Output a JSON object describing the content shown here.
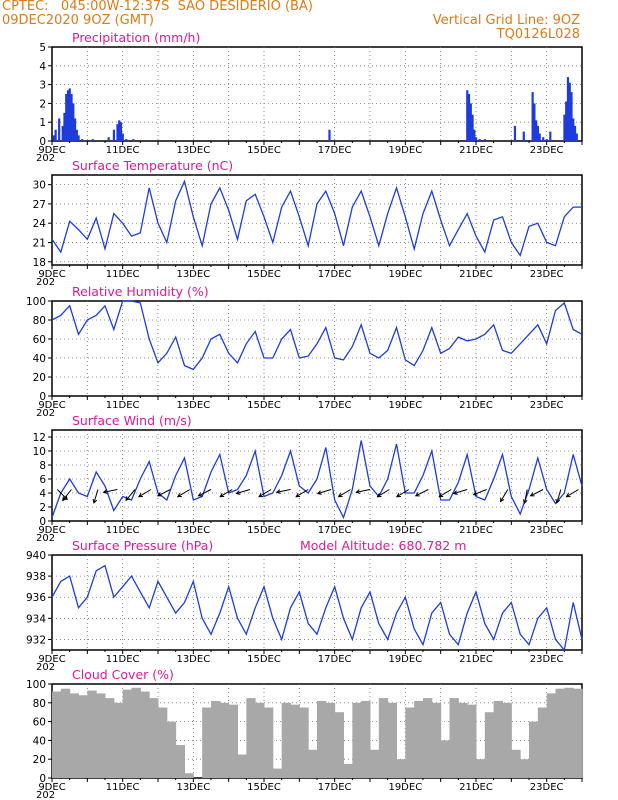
{
  "header": {
    "station": "CPTEC:   045:00W-12:37S  SAO DESIDERIO (BA)",
    "init_time": "09DEC2020 9OZ (GMT)",
    "grid_note": "Vertical Grid Line: 9OZ",
    "run_code": "TQ0126L028"
  },
  "colors": {
    "header": "#e07a14",
    "title": "#e0189a",
    "series": "#1e3cdc",
    "cloud": "#a8a8a8",
    "wind_arrow": "#000000"
  },
  "x_axis": {
    "start_day": 9,
    "end_day": 24,
    "labels": [
      {
        "day": 9,
        "text": "9DEC"
      },
      {
        "day": 11,
        "text": "11DEC"
      },
      {
        "day": 13,
        "text": "13DEC"
      },
      {
        "day": 15,
        "text": "15DEC"
      },
      {
        "day": 17,
        "text": "17DEC"
      },
      {
        "day": 19,
        "text": "19DEC"
      },
      {
        "day": 21,
        "text": "21DEC"
      },
      {
        "day": 23,
        "text": "23DEC"
      }
    ],
    "sub_label": "202"
  },
  "chart_data": [
    {
      "type": "bar",
      "title": "Precipitation (mm/h)",
      "ylim": [
        0,
        5
      ],
      "yticks": [
        0,
        1,
        2,
        3,
        4,
        5
      ],
      "x": [
        9.05,
        9.1,
        9.2,
        9.3,
        9.35,
        9.4,
        9.45,
        9.5,
        9.55,
        9.6,
        9.65,
        9.7,
        9.75,
        9.85,
        10.15,
        10.6,
        10.75,
        10.85,
        10.9,
        10.95,
        11.0,
        11.1,
        11.3,
        16.85,
        20.75,
        20.8,
        20.85,
        20.9,
        20.95,
        21.0,
        21.1,
        21.25,
        22.1,
        22.35,
        22.6,
        22.65,
        22.7,
        22.75,
        22.8,
        22.9,
        23.0,
        23.1,
        23.5,
        23.55,
        23.6,
        23.65,
        23.7,
        23.75,
        23.8,
        23.85
      ],
      "values": [
        0.3,
        0.6,
        1.2,
        0.8,
        1.5,
        2.5,
        2.7,
        2.8,
        2.5,
        2.0,
        1.2,
        0.6,
        0.3,
        0.1,
        0.1,
        0.2,
        0.6,
        0.9,
        1.1,
        1.0,
        0.4,
        0.1,
        0.1,
        0.6,
        2.7,
        2.5,
        2.0,
        1.4,
        0.6,
        0.2,
        0.1,
        0.1,
        0.8,
        0.5,
        2.6,
        2.0,
        1.1,
        0.8,
        0.4,
        0.2,
        0.1,
        0.5,
        1.4,
        2.1,
        3.4,
        3.1,
        2.6,
        1.2,
        0.8,
        0.4
      ]
    },
    {
      "type": "line",
      "title": "Surface Temperature (nC)",
      "ylim": [
        17.5,
        31.5
      ],
      "yticks": [
        18,
        21,
        24,
        27,
        30
      ],
      "series": [
        {
          "x": [
            9.0,
            9.25,
            9.5,
            9.75,
            10.0,
            10.25,
            10.5,
            10.75,
            11.0,
            11.25,
            11.5,
            11.75,
            12.0,
            12.25,
            12.5,
            12.75,
            13.0,
            13.25,
            13.5,
            13.75,
            14.0,
            14.25,
            14.5,
            14.75,
            15.0,
            15.25,
            15.5,
            15.75,
            16.0,
            16.25,
            16.5,
            16.75,
            17.0,
            17.25,
            17.5,
            17.75,
            18.0,
            18.25,
            18.5,
            18.75,
            19.0,
            19.25,
            19.5,
            19.75,
            20.0,
            20.25,
            20.5,
            20.75,
            21.0,
            21.25,
            21.5,
            21.75,
            22.0,
            22.25,
            22.5,
            22.75,
            23.0,
            23.25,
            23.5,
            23.75,
            24.0
          ],
          "values": [
            21.5,
            19.5,
            24.3,
            23.0,
            21.5,
            24.8,
            20.0,
            25.5,
            24.0,
            22.0,
            22.5,
            29.5,
            24.0,
            21.0,
            27.5,
            30.5,
            25.0,
            20.5,
            27.0,
            29.5,
            26.0,
            21.5,
            27.5,
            28.5,
            25.0,
            21.0,
            26.5,
            29.0,
            25.0,
            20.5,
            27.0,
            29.0,
            25.5,
            20.5,
            26.5,
            29.0,
            25.0,
            20.5,
            25.5,
            29.5,
            25.0,
            20.0,
            25.5,
            29.0,
            24.5,
            20.5,
            23.0,
            25.5,
            22.0,
            19.5,
            24.5,
            25.0,
            21.0,
            19.0,
            23.5,
            24.0,
            21.0,
            20.5,
            25.0,
            26.5,
            26.5
          ]
        }
      ]
    },
    {
      "type": "line",
      "title": "Relative Humidity (%)",
      "ylim": [
        0,
        100
      ],
      "yticks": [
        0,
        20,
        40,
        60,
        80,
        100
      ],
      "series": [
        {
          "x": [
            9.0,
            9.25,
            9.5,
            9.75,
            10.0,
            10.25,
            10.5,
            10.75,
            11.0,
            11.25,
            11.5,
            11.75,
            12.0,
            12.25,
            12.5,
            12.75,
            13.0,
            13.25,
            13.5,
            13.75,
            14.0,
            14.25,
            14.5,
            14.75,
            15.0,
            15.25,
            15.5,
            15.75,
            16.0,
            16.25,
            16.5,
            16.75,
            17.0,
            17.25,
            17.5,
            17.75,
            18.0,
            18.25,
            18.5,
            18.75,
            19.0,
            19.25,
            19.5,
            19.75,
            20.0,
            20.25,
            20.5,
            20.75,
            21.0,
            21.25,
            21.5,
            21.75,
            22.0,
            22.25,
            22.5,
            22.75,
            23.0,
            23.25,
            23.5,
            23.75,
            24.0
          ],
          "values": [
            80,
            85,
            95,
            65,
            80,
            85,
            95,
            70,
            100,
            100,
            98,
            60,
            35,
            45,
            62,
            32,
            28,
            40,
            60,
            65,
            45,
            35,
            55,
            68,
            40,
            40,
            60,
            70,
            40,
            42,
            55,
            72,
            40,
            38,
            52,
            75,
            45,
            40,
            48,
            72,
            38,
            32,
            48,
            72,
            45,
            50,
            62,
            58,
            60,
            65,
            75,
            48,
            45,
            55,
            65,
            75,
            55,
            90,
            98,
            70,
            65
          ]
        }
      ]
    },
    {
      "type": "line",
      "title": "Surface Wind (m/s)",
      "ylim": [
        0,
        13
      ],
      "yticks": [
        0,
        2,
        4,
        6,
        8,
        10,
        12
      ],
      "series": [
        {
          "x": [
            9.0,
            9.25,
            9.5,
            9.75,
            10.0,
            10.25,
            10.5,
            10.75,
            11.0,
            11.25,
            11.5,
            11.75,
            12.0,
            12.25,
            12.5,
            12.75,
            13.0,
            13.25,
            13.5,
            13.75,
            14.0,
            14.25,
            14.5,
            14.75,
            15.0,
            15.25,
            15.5,
            15.75,
            16.0,
            16.25,
            16.5,
            16.75,
            17.0,
            17.25,
            17.5,
            17.75,
            18.0,
            18.25,
            18.5,
            18.75,
            19.0,
            19.25,
            19.5,
            19.75,
            20.0,
            20.25,
            20.5,
            20.75,
            21.0,
            21.25,
            21.5,
            21.75,
            22.0,
            22.25,
            22.5,
            22.75,
            23.0,
            23.25,
            23.5,
            23.75,
            24.0
          ],
          "values": [
            0.5,
            4.0,
            6.0,
            4.0,
            3.5,
            7.0,
            5.0,
            1.5,
            3.5,
            3.0,
            6.0,
            8.5,
            4.0,
            3.0,
            6.5,
            9.0,
            3.0,
            3.5,
            7.0,
            9.5,
            4.0,
            4.5,
            6.5,
            10.0,
            3.5,
            4.0,
            6.5,
            10.0,
            5.0,
            4.0,
            6.0,
            10.5,
            3.0,
            0.5,
            4.5,
            11.5,
            5.0,
            3.5,
            6.0,
            11.0,
            4.0,
            4.0,
            6.5,
            10.0,
            3.0,
            3.0,
            5.5,
            9.5,
            3.5,
            3.0,
            6.0,
            9.5,
            3.5,
            1.0,
            4.5,
            9.0,
            4.5,
            2.5,
            4.0,
            9.5,
            5.0
          ]
        }
      ],
      "wind_arrows": [
        {
          "x": 9.15,
          "dx": -1,
          "dy": 1.0
        },
        {
          "x": 9.55,
          "dx": 0.8,
          "dy": 1.0
        },
        {
          "x": 10.3,
          "dx": 0.3,
          "dy": 1.0
        },
        {
          "x": 10.85,
          "dx": 1,
          "dy": 0.2
        },
        {
          "x": 11.35,
          "dx": 1,
          "dy": 1.2
        },
        {
          "x": 11.8,
          "dx": 1,
          "dy": 0.6
        },
        {
          "x": 12.35,
          "dx": 1,
          "dy": 0.5
        },
        {
          "x": 12.9,
          "dx": 1,
          "dy": 0.6
        },
        {
          "x": 13.5,
          "dx": 1,
          "dy": 0.5
        },
        {
          "x": 14.1,
          "dx": 1,
          "dy": 0.6
        },
        {
          "x": 14.6,
          "dx": 1,
          "dy": 0.3
        },
        {
          "x": 15.2,
          "dx": 1,
          "dy": 0.6
        },
        {
          "x": 15.75,
          "dx": 1,
          "dy": 0.2
        },
        {
          "x": 16.25,
          "dx": 1,
          "dy": 0.6
        },
        {
          "x": 16.9,
          "dx": 1,
          "dy": 0.3
        },
        {
          "x": 17.45,
          "dx": 1,
          "dy": 0.6
        },
        {
          "x": 18.0,
          "dx": 1,
          "dy": 0.2
        },
        {
          "x": 18.55,
          "dx": 1,
          "dy": 0.6
        },
        {
          "x": 19.1,
          "dx": 1,
          "dy": 0.6
        },
        {
          "x": 19.65,
          "dx": 1,
          "dy": 0.5
        },
        {
          "x": 20.3,
          "dx": 1,
          "dy": 0.6
        },
        {
          "x": 20.75,
          "dx": 1,
          "dy": 0.3
        },
        {
          "x": 21.3,
          "dx": 1,
          "dy": 0.4
        },
        {
          "x": 21.9,
          "dx": 0.6,
          "dy": 1.0
        },
        {
          "x": 22.45,
          "dx": 0.2,
          "dy": 1.0
        },
        {
          "x": 22.9,
          "dx": 1,
          "dy": 0.5
        },
        {
          "x": 23.4,
          "dx": 0.3,
          "dy": 1.0
        },
        {
          "x": 23.9,
          "dx": 1,
          "dy": 0.6
        }
      ]
    },
    {
      "type": "line",
      "title": "Surface Pressure (hPa)",
      "note": "Model Altitude: 680.782  m",
      "ylim": [
        931,
        940
      ],
      "yticks": [
        932,
        934,
        936,
        938,
        940
      ],
      "series": [
        {
          "x": [
            9.0,
            9.25,
            9.5,
            9.75,
            10.0,
            10.25,
            10.5,
            10.75,
            11.0,
            11.25,
            11.5,
            11.75,
            12.0,
            12.25,
            12.5,
            12.75,
            13.0,
            13.25,
            13.5,
            13.75,
            14.0,
            14.25,
            14.5,
            14.75,
            15.0,
            15.25,
            15.5,
            15.75,
            16.0,
            16.25,
            16.5,
            16.75,
            17.0,
            17.25,
            17.5,
            17.75,
            18.0,
            18.25,
            18.5,
            18.75,
            19.0,
            19.25,
            19.5,
            19.75,
            20.0,
            20.25,
            20.5,
            20.75,
            21.0,
            21.25,
            21.5,
            21.75,
            22.0,
            22.25,
            22.5,
            22.75,
            23.0,
            23.25,
            23.5,
            23.75,
            24.0
          ],
          "values": [
            936.0,
            937.5,
            938.0,
            935.0,
            936.0,
            938.5,
            939.0,
            936.0,
            937.0,
            938.0,
            936.5,
            935.0,
            937.5,
            936.0,
            934.5,
            935.5,
            937.5,
            934.0,
            932.5,
            934.5,
            937.0,
            934.0,
            932.5,
            935.0,
            937.0,
            934.0,
            932.0,
            935.0,
            936.5,
            933.5,
            932.5,
            935.0,
            937.0,
            934.0,
            932.0,
            935.0,
            936.5,
            933.5,
            932.0,
            934.5,
            936.0,
            933.0,
            931.5,
            934.5,
            935.5,
            932.5,
            931.5,
            934.5,
            936.5,
            933.5,
            932.0,
            934.5,
            935.5,
            932.5,
            931.5,
            934.0,
            935.0,
            932.0,
            931.0,
            935.5,
            932.0
          ]
        }
      ]
    },
    {
      "type": "bar",
      "title": "Cloud Cover (%)",
      "ylim": [
        0,
        100
      ],
      "yticks": [
        0,
        20,
        40,
        60,
        80,
        100
      ],
      "x": [
        9.0,
        9.25,
        9.5,
        9.75,
        10.0,
        10.25,
        10.5,
        10.75,
        11.0,
        11.25,
        11.5,
        11.75,
        12.0,
        12.25,
        12.5,
        12.75,
        13.0,
        13.25,
        13.5,
        13.75,
        14.0,
        14.25,
        14.5,
        14.75,
        15.0,
        15.25,
        15.5,
        15.75,
        16.0,
        16.25,
        16.5,
        16.75,
        17.0,
        17.25,
        17.5,
        17.75,
        18.0,
        18.25,
        18.5,
        18.75,
        19.0,
        19.25,
        19.5,
        19.75,
        20.0,
        20.25,
        20.5,
        20.75,
        21.0,
        21.25,
        21.5,
        21.75,
        22.0,
        22.25,
        22.5,
        22.75,
        23.0,
        23.25,
        23.5,
        23.75
      ],
      "values": [
        92,
        95,
        90,
        88,
        93,
        90,
        85,
        80,
        94,
        96,
        92,
        85,
        75,
        60,
        35,
        5,
        0,
        75,
        82,
        80,
        78,
        25,
        85,
        80,
        75,
        10,
        80,
        78,
        75,
        30,
        82,
        80,
        70,
        15,
        80,
        82,
        30,
        85,
        80,
        20,
        75,
        82,
        85,
        80,
        40,
        85,
        80,
        78,
        20,
        70,
        82,
        80,
        30,
        20,
        60,
        75,
        90,
        95,
        96,
        95
      ]
    }
  ]
}
